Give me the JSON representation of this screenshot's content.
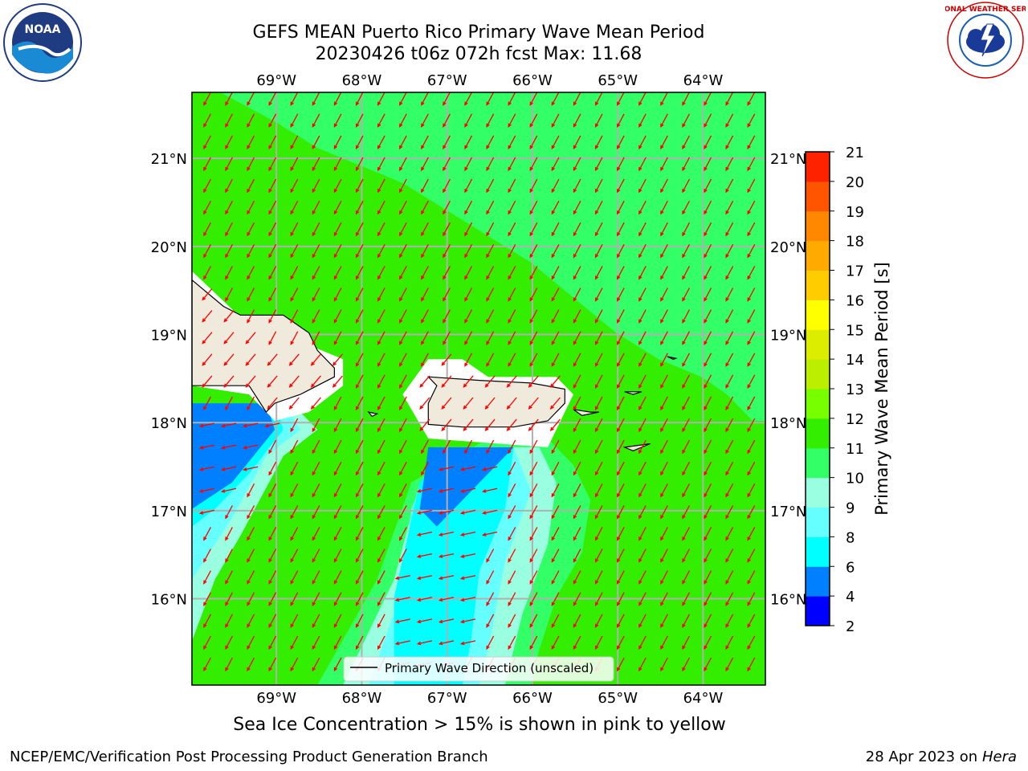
{
  "header": {
    "title_line1": "GEFS MEAN Puerto Rico Primary Wave Mean Period",
    "title_line2": "20230426 t06z 072h fcst   Max: 11.68"
  },
  "note": "Sea Ice Concentration > 15% is shown in pink to yellow",
  "footer": {
    "left": "NCEP/EMC/Verification Post Processing Product Generation Branch",
    "right_prefix": "28 Apr 2023 on ",
    "right_host": "Hera"
  },
  "logos": {
    "left": {
      "icon": "noaa-logo",
      "text": "NOAA"
    },
    "right": {
      "icon": "nws-logo",
      "text": "NATIONAL WEATHER SERVICE"
    }
  },
  "chart_data": {
    "type": "heatmap",
    "title": "GEFS MEAN Puerto Rico Primary Wave Mean Period",
    "subtitle": "20230426 t06z 072h fcst   Max: 11.68",
    "max_value": 11.68,
    "xlim": [
      -69.99,
      -63.27
    ],
    "ylim": [
      15.02,
      21.75
    ],
    "x_ticks": [
      {
        "value": -69,
        "label": "69°W"
      },
      {
        "value": -68,
        "label": "68°W"
      },
      {
        "value": -67,
        "label": "67°W"
      },
      {
        "value": -66,
        "label": "66°W"
      },
      {
        "value": -65,
        "label": "65°W"
      },
      {
        "value": -64,
        "label": "64°W"
      }
    ],
    "y_ticks": [
      {
        "value": 16,
        "label": "16°N"
      },
      {
        "value": 17,
        "label": "17°N"
      },
      {
        "value": 18,
        "label": "18°N"
      },
      {
        "value": 19,
        "label": "19°N"
      },
      {
        "value": 20,
        "label": "20°N"
      },
      {
        "value": 21,
        "label": "21°N"
      }
    ],
    "grid": true,
    "colorbar": {
      "label": "Primary Wave Mean Period [s]",
      "levels": [
        2,
        4,
        6,
        8,
        9,
        10,
        11,
        12,
        13,
        14,
        15,
        16,
        17,
        18,
        19,
        20,
        21
      ],
      "colors": [
        "#0000ff",
        "#0080ff",
        "#00ffff",
        "#66ffff",
        "#99ffe0",
        "#33ff66",
        "#33ee00",
        "#77ff00",
        "#bbee00",
        "#dded00",
        "#ffff00",
        "#ffcc00",
        "#ffaa00",
        "#ff8800",
        "#ff5500",
        "#ff2200"
      ]
    },
    "regions": [
      {
        "level": "11-12",
        "desc": "dominant field",
        "color": "#33ee00"
      },
      {
        "level": "10-11",
        "desc": "north-east band",
        "poly": [
          [
            -69.66,
            21.75
          ],
          [
            -63.27,
            21.75
          ],
          [
            -63.27,
            18.02
          ],
          [
            -63.42,
            18.02
          ],
          [
            -63.72,
            18.32
          ],
          [
            -64.02,
            18.52
          ],
          [
            -64.52,
            18.72
          ],
          [
            -65.02,
            19.02
          ],
          [
            -65.52,
            19.42
          ],
          [
            -66.02,
            19.82
          ],
          [
            -66.52,
            20.12
          ],
          [
            -67.02,
            20.42
          ],
          [
            -67.52,
            20.72
          ],
          [
            -68.02,
            20.92
          ],
          [
            -68.52,
            21.12
          ],
          [
            -69.02,
            21.42
          ]
        ],
        "color": "#33ff66"
      },
      {
        "level": "10-11",
        "desc": "south halo",
        "poly": [
          [
            -68.52,
            15.02
          ],
          [
            -67.82,
            16.22
          ],
          [
            -67.42,
            17.32
          ],
          [
            -66.52,
            17.82
          ],
          [
            -65.82,
            17.82
          ],
          [
            -65.52,
            17.52
          ],
          [
            -65.32,
            17.12
          ],
          [
            -65.42,
            16.52
          ],
          [
            -65.72,
            16.02
          ],
          [
            -65.92,
            15.42
          ],
          [
            -66.02,
            15.02
          ]
        ],
        "color": "#33ff66"
      },
      {
        "level": "9-10",
        "desc": "south",
        "poly": [
          [
            -68.22,
            15.02
          ],
          [
            -67.62,
            16.22
          ],
          [
            -67.32,
            17.32
          ],
          [
            -66.62,
            17.72
          ],
          [
            -65.92,
            17.72
          ],
          [
            -65.72,
            17.32
          ],
          [
            -65.82,
            16.62
          ],
          [
            -66.12,
            15.82
          ],
          [
            -66.32,
            15.02
          ]
        ],
        "color": "#99ffe0"
      },
      {
        "level": "8-9",
        "desc": "south",
        "poly": [
          [
            -67.92,
            15.02
          ],
          [
            -67.52,
            16.12
          ],
          [
            -67.42,
            17.02
          ],
          [
            -67.12,
            17.72
          ],
          [
            -66.22,
            17.72
          ],
          [
            -66.02,
            17.22
          ],
          [
            -66.32,
            16.42
          ],
          [
            -66.52,
            15.42
          ],
          [
            -66.62,
            15.02
          ]
        ],
        "color": "#66ffff"
      },
      {
        "level": "6-8",
        "desc": "south",
        "poly": [
          [
            -67.62,
            15.02
          ],
          [
            -67.62,
            16.02
          ],
          [
            -67.32,
            17.32
          ],
          [
            -66.92,
            17.72
          ],
          [
            -66.22,
            17.72
          ],
          [
            -66.32,
            17.02
          ],
          [
            -66.62,
            16.32
          ],
          [
            -66.72,
            15.52
          ],
          [
            -66.82,
            15.02
          ]
        ],
        "color": "#00ffff"
      },
      {
        "level": "4-6",
        "desc": "south coast",
        "poly": [
          [
            -67.22,
            17.72
          ],
          [
            -66.22,
            17.72
          ],
          [
            -66.62,
            17.32
          ],
          [
            -66.92,
            17.02
          ],
          [
            -67.12,
            16.82
          ],
          [
            -67.32,
            17.02
          ]
        ],
        "color": "#0080ff"
      },
      {
        "level": "9-10",
        "desc": "west",
        "poly": [
          [
            -69.99,
            15.52
          ],
          [
            -69.99,
            18.22
          ],
          [
            -68.82,
            18.22
          ],
          [
            -68.52,
            17.92
          ],
          [
            -68.92,
            17.62
          ],
          [
            -69.42,
            16.72
          ],
          [
            -69.72,
            16.22
          ]
        ],
        "color": "#99ffe0"
      },
      {
        "level": "8-9",
        "desc": "west",
        "poly": [
          [
            -69.99,
            16.22
          ],
          [
            -69.99,
            18.22
          ],
          [
            -68.92,
            18.22
          ],
          [
            -68.72,
            17.92
          ],
          [
            -69.12,
            17.62
          ],
          [
            -69.52,
            16.92
          ]
        ],
        "color": "#66ffff"
      },
      {
        "level": "6-8",
        "desc": "west",
        "poly": [
          [
            -69.99,
            16.82
          ],
          [
            -69.99,
            18.22
          ],
          [
            -69.02,
            18.22
          ],
          [
            -68.92,
            17.92
          ],
          [
            -69.32,
            17.42
          ],
          [
            -69.72,
            17.02
          ]
        ],
        "color": "#00ffff"
      },
      {
        "level": "4-6",
        "desc": "west",
        "poly": [
          [
            -69.99,
            17.02
          ],
          [
            -69.99,
            18.22
          ],
          [
            -69.12,
            18.22
          ],
          [
            -69.02,
            17.92
          ],
          [
            -69.52,
            17.32
          ]
        ],
        "color": "#0080ff"
      },
      {
        "level": "masked",
        "desc": "land halo Hispaniola",
        "poly": [
          [
            -69.99,
            19.72
          ],
          [
            -69.12,
            18.92
          ],
          [
            -68.72,
            18.92
          ],
          [
            -68.22,
            18.72
          ],
          [
            -68.22,
            18.42
          ],
          [
            -68.62,
            18.12
          ],
          [
            -69.02,
            18.02
          ],
          [
            -69.32,
            18.32
          ],
          [
            -69.99,
            18.42
          ]
        ],
        "color": "#ffffff"
      },
      {
        "level": "masked",
        "desc": "land halo Puerto Rico",
        "poly": [
          [
            -67.52,
            18.32
          ],
          [
            -67.22,
            18.72
          ],
          [
            -66.82,
            18.72
          ],
          [
            -66.52,
            18.52
          ],
          [
            -65.72,
            18.52
          ],
          [
            -65.52,
            18.32
          ],
          [
            -65.72,
            17.92
          ],
          [
            -65.82,
            17.72
          ],
          [
            -67.22,
            17.82
          ]
        ],
        "color": "#ffffff"
      }
    ],
    "arrows": {
      "direction": "from north-north-east toward south-south-west (primary wave direction)",
      "color": "#ff0000"
    },
    "land": [
      {
        "name": "Hispaniola",
        "poly": [
          [
            -69.99,
            19.62
          ],
          [
            -69.62,
            19.32
          ],
          [
            -69.42,
            19.22
          ],
          [
            -68.92,
            19.22
          ],
          [
            -68.62,
            19.02
          ],
          [
            -68.52,
            18.82
          ],
          [
            -68.32,
            18.62
          ],
          [
            -68.32,
            18.52
          ],
          [
            -68.72,
            18.32
          ],
          [
            -69.02,
            18.22
          ],
          [
            -69.12,
            18.12
          ],
          [
            -69.32,
            18.42
          ],
          [
            -69.99,
            18.42
          ]
        ]
      },
      {
        "name": "Puerto Rico",
        "poly": [
          [
            -67.22,
            18.52
          ],
          [
            -66.62,
            18.48
          ],
          [
            -66.02,
            18.45
          ],
          [
            -65.62,
            18.38
          ],
          [
            -65.62,
            18.22
          ],
          [
            -65.82,
            18.02
          ],
          [
            -66.22,
            17.95
          ],
          [
            -66.82,
            17.95
          ],
          [
            -67.22,
            17.98
          ],
          [
            -67.22,
            18.22
          ],
          [
            -67.12,
            18.42
          ]
        ]
      },
      {
        "name": "Vieques",
        "poly": [
          [
            -65.52,
            18.15
          ],
          [
            -65.32,
            18.12
          ],
          [
            -65.22,
            18.12
          ],
          [
            -65.42,
            18.08
          ]
        ]
      },
      {
        "name": "St Thomas",
        "poly": [
          [
            -64.92,
            18.35
          ],
          [
            -64.72,
            18.35
          ],
          [
            -64.82,
            18.32
          ]
        ]
      },
      {
        "name": "St Croix",
        "poly": [
          [
            -64.92,
            17.72
          ],
          [
            -64.62,
            17.76
          ],
          [
            -64.82,
            17.68
          ]
        ]
      },
      {
        "name": "Anegada",
        "poly": [
          [
            -64.42,
            18.75
          ],
          [
            -64.32,
            18.73
          ],
          [
            -64.35,
            18.72
          ]
        ]
      },
      {
        "name": "Mona",
        "poly": [
          [
            -67.92,
            18.12
          ],
          [
            -67.82,
            18.1
          ],
          [
            -67.88,
            18.07
          ]
        ]
      }
    ],
    "legend": {
      "entry": "Primary Wave Direction (unscaled)",
      "placement": "lower-center"
    }
  }
}
